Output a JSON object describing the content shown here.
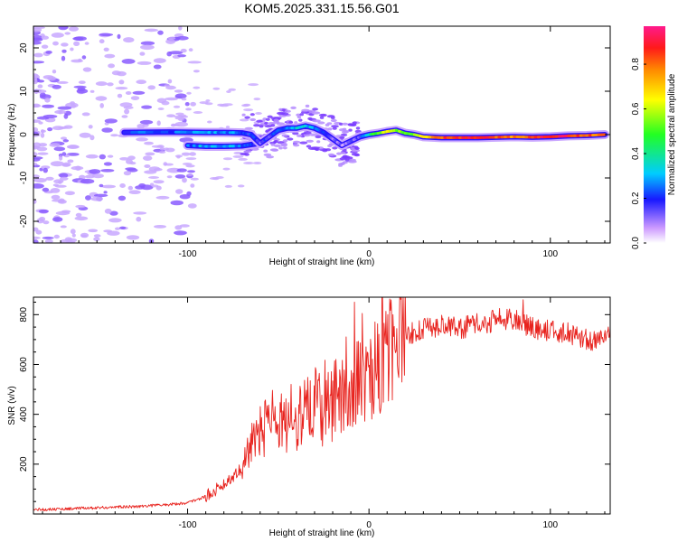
{
  "title": "KOM5.2025.331.15.56.G01",
  "colors": {
    "snr_line": "#e8231e",
    "cloud": "#c8a8ff",
    "frame": "#000000"
  },
  "colorbar": {
    "label": "Normalized spectral amplitude",
    "ticks": [
      "0.0",
      "0.2",
      "0.4",
      "0.6",
      "0.8"
    ],
    "range": [
      0,
      0.97
    ]
  },
  "chart_data": [
    {
      "type": "heatmap",
      "title": "KOM5.2025.331.15.56.G01",
      "xlabel": "Height of straight line (km)",
      "ylabel": "Frequency (Hz)",
      "xlim": [
        -185,
        133
      ],
      "ylim": [
        -25,
        25
      ],
      "xticks": [
        -100,
        0,
        100
      ],
      "xtick_labels": [
        "-100",
        "0",
        "100"
      ],
      "yticks": [
        -20,
        -10,
        0,
        10,
        20
      ],
      "ytick_labels": [
        "-20",
        "-10",
        "0",
        "10",
        "20"
      ],
      "ridge": {
        "x": [
          -135,
          -110,
          -90,
          -80,
          -70,
          -65,
          -60,
          -55,
          -50,
          -45,
          -40,
          -35,
          -30,
          -25,
          -20,
          -15,
          -10,
          -5,
          0,
          5,
          10,
          15,
          20,
          25,
          30,
          40,
          50,
          60,
          70,
          80,
          90,
          100,
          110,
          120,
          130
        ],
        "y": [
          0.5,
          0.6,
          0.5,
          0.5,
          0.4,
          0,
          -2,
          -0.5,
          1,
          1.5,
          1.5,
          2,
          1.5,
          0.5,
          -1,
          -2.5,
          -1.5,
          -0.5,
          0,
          0.3,
          0.7,
          1,
          0.3,
          0,
          -0.5,
          -0.7,
          -0.7,
          -0.7,
          -0.6,
          -0.5,
          -0.6,
          -0.5,
          -0.3,
          -0.2,
          0
        ],
        "amplitude": [
          0.2,
          0.25,
          0.3,
          0.28,
          0.25,
          0.2,
          0.15,
          0.18,
          0.2,
          0.28,
          0.32,
          0.35,
          0.3,
          0.2,
          0.12,
          0.1,
          0.1,
          0.15,
          0.35,
          0.55,
          0.65,
          0.6,
          0.5,
          0.55,
          0.65,
          0.85,
          0.9,
          0.9,
          0.85,
          0.8,
          0.85,
          0.95,
          0.9,
          0.85,
          0.8
        ]
      },
      "branch": {
        "x": [
          -100,
          -90,
          -80,
          -70,
          -65,
          -60
        ],
        "y": [
          -2.5,
          -2.7,
          -2.7,
          -2.6,
          -2.3,
          -2
        ],
        "amplitude": [
          0.25,
          0.3,
          0.3,
          0.25,
          0.2,
          0.15
        ]
      }
    },
    {
      "type": "line",
      "xlabel": "Height of straight line (km)",
      "ylabel": "SNR (v/v)",
      "xlim": [
        -185,
        133
      ],
      "ylim": [
        0,
        870
      ],
      "xticks": [
        -100,
        0,
        100
      ],
      "xtick_labels": [
        "-100",
        "0",
        "100"
      ],
      "yticks": [
        200,
        400,
        600,
        800
      ],
      "ytick_labels": [
        "200",
        "400",
        "600",
        "800"
      ],
      "series": [
        {
          "name": "SNR",
          "x": [
            -185,
            -170,
            -150,
            -130,
            -110,
            -100,
            -90,
            -85,
            -80,
            -75,
            -70,
            -65,
            -60,
            -55,
            -50,
            -45,
            -40,
            -35,
            -30,
            -25,
            -20,
            -15,
            -10,
            -8,
            -5,
            0,
            5,
            10,
            15,
            20,
            25,
            30,
            40,
            50,
            60,
            70,
            80,
            85,
            90,
            100,
            110,
            120,
            125,
            133
          ],
          "y": [
            18,
            20,
            25,
            30,
            38,
            45,
            70,
            95,
            120,
            150,
            190,
            250,
            320,
            360,
            390,
            340,
            380,
            420,
            430,
            410,
            440,
            470,
            500,
            520,
            540,
            560,
            610,
            650,
            690,
            720,
            730,
            740,
            760,
            745,
            760,
            775,
            780,
            770,
            745,
            735,
            725,
            700,
            695,
            715
          ],
          "spikes": [
            {
              "x": -8,
              "y": 850
            },
            {
              "x": 85,
              "y": 860
            },
            {
              "x": 72,
              "y": 825
            }
          ]
        }
      ]
    }
  ]
}
